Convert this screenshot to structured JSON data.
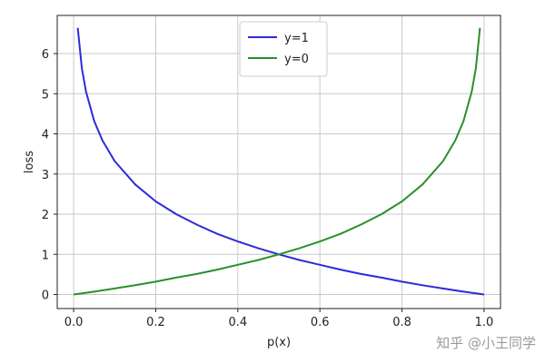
{
  "chart_data": {
    "type": "line",
    "title": "",
    "xlabel": "p(x)",
    "ylabel": "loss",
    "xlim": [
      -0.04,
      1.04
    ],
    "ylim": [
      -0.35,
      6.95
    ],
    "xticks": [
      0.0,
      0.2,
      0.4,
      0.6,
      0.8,
      1.0
    ],
    "xtick_labels": [
      "0.0",
      "0.2",
      "0.4",
      "0.6",
      "0.8",
      "1.0"
    ],
    "yticks": [
      0,
      1,
      2,
      3,
      4,
      5,
      6
    ],
    "ytick_labels": [
      "0",
      "1",
      "2",
      "3",
      "4",
      "5",
      "6"
    ],
    "grid": true,
    "legend_position": "top-center",
    "series": [
      {
        "name": "y=1",
        "color": "#2b2bd9",
        "x": [
          0.01,
          0.02,
          0.03,
          0.05,
          0.07,
          0.1,
          0.15,
          0.2,
          0.25,
          0.3,
          0.35,
          0.4,
          0.45,
          0.5,
          0.55,
          0.6,
          0.65,
          0.7,
          0.75,
          0.8,
          0.85,
          0.9,
          0.95,
          1.0
        ],
        "y": [
          6.64,
          5.64,
          5.06,
          4.32,
          3.84,
          3.32,
          2.74,
          2.32,
          2.0,
          1.74,
          1.51,
          1.32,
          1.15,
          1.0,
          0.86,
          0.74,
          0.62,
          0.51,
          0.42,
          0.32,
          0.23,
          0.15,
          0.07,
          0.0
        ]
      },
      {
        "name": "y=0",
        "color": "#2a8f2a",
        "x": [
          0.0,
          0.05,
          0.1,
          0.15,
          0.2,
          0.25,
          0.3,
          0.35,
          0.4,
          0.45,
          0.5,
          0.55,
          0.6,
          0.65,
          0.7,
          0.75,
          0.8,
          0.85,
          0.9,
          0.93,
          0.95,
          0.97,
          0.98,
          0.99
        ],
        "y": [
          0.0,
          0.07,
          0.15,
          0.23,
          0.32,
          0.42,
          0.51,
          0.62,
          0.74,
          0.86,
          1.0,
          1.15,
          1.32,
          1.51,
          1.74,
          2.0,
          2.32,
          2.74,
          3.32,
          3.84,
          4.32,
          5.06,
          5.64,
          6.64
        ]
      }
    ]
  },
  "watermark": "知乎 @小王同学"
}
